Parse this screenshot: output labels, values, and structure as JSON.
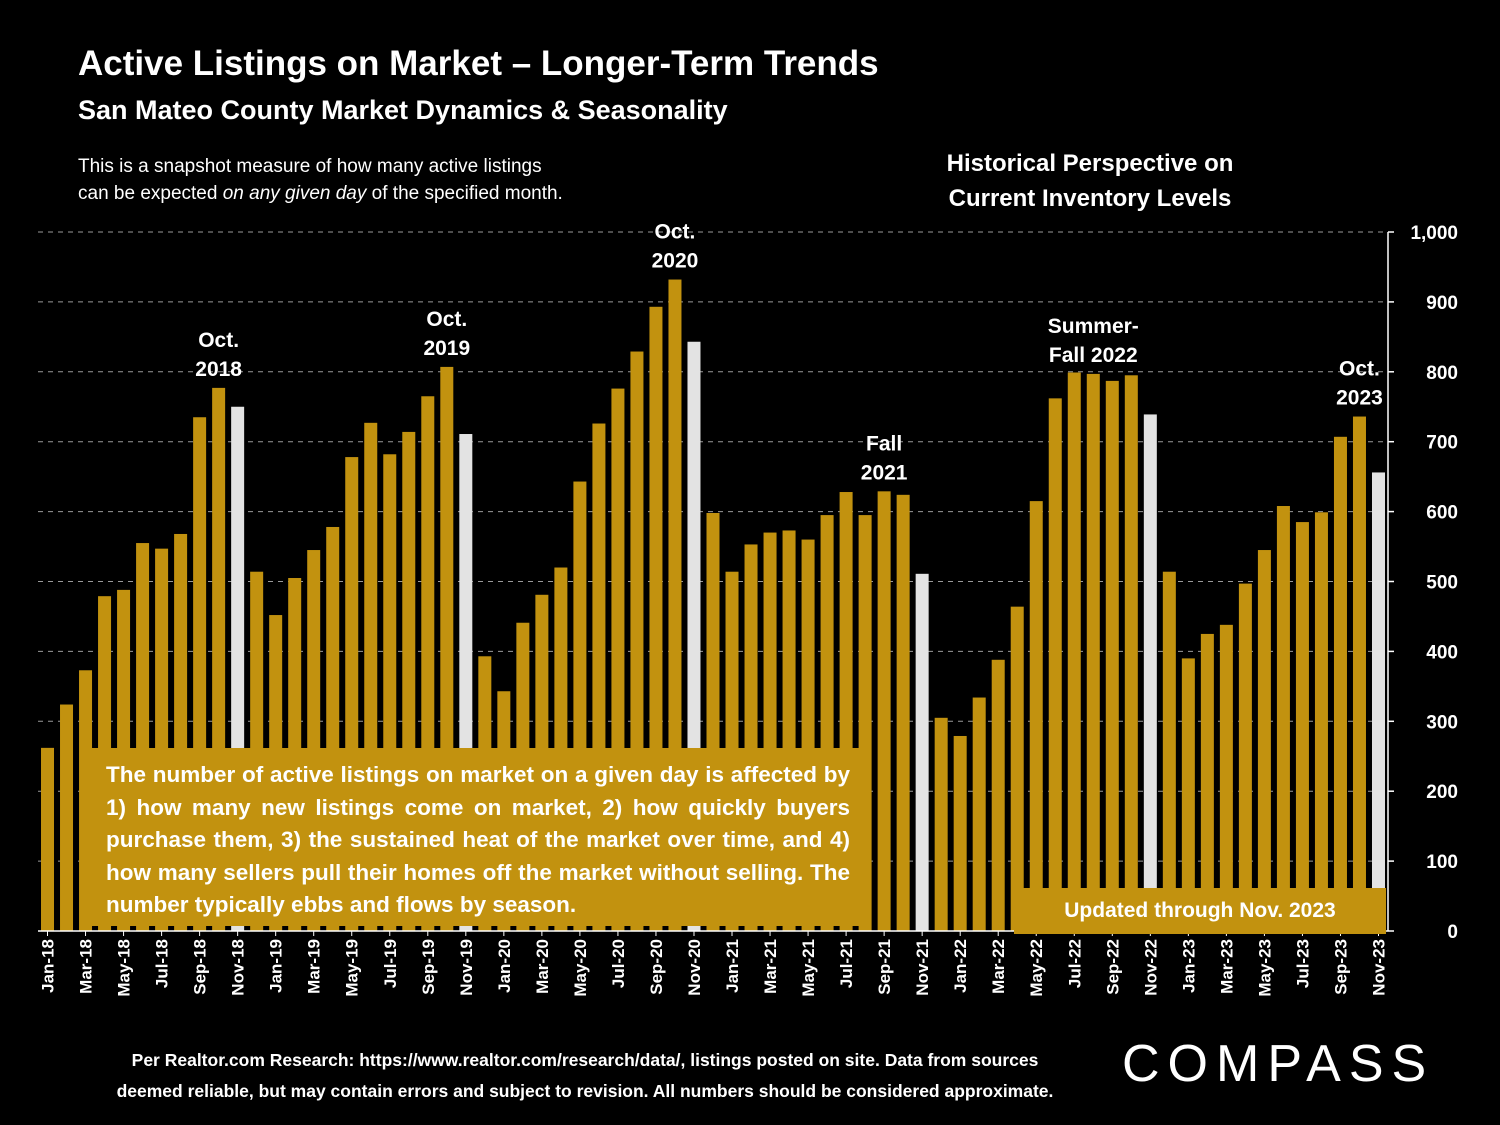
{
  "header": {
    "title": "Active Listings on Market – Longer-Term Trends",
    "subtitle": "San Mateo County Market Dynamics & Seasonality",
    "desc_pre": "This is a snapshot measure of how many active listings",
    "desc_line2_a": "can be expected ",
    "desc_line2_em": "on any given day",
    "desc_line2_b": " of the specified month.",
    "hist_line1": "Historical Perspective on",
    "hist_line2": "Current Inventory Levels"
  },
  "callout": "The number of active listings on market on a given day is affected by 1) how many new listings come on market, 2) how quickly buyers purchase them, 3) the sustained heat of the market over time, and 4) how many sellers pull their homes off the market without selling. The number typically ebbs and flows by season.",
  "updated": "Updated through Nov. 2023",
  "footer": {
    "line1": "Per Realtor.com Research:  https://www.realtor.com/research/data/, listings posted on site. Data from sources",
    "line2": "deemed reliable, but may contain errors and subject to revision. All numbers should be considered approximate."
  },
  "logo": "COMPASS",
  "colors": {
    "bar": "#c2920f",
    "highlight": "#e3e3e3",
    "background": "#000000"
  },
  "chart_data": {
    "type": "bar",
    "ylim": [
      0,
      1000
    ],
    "yticks": [
      0,
      100,
      200,
      300,
      400,
      500,
      600,
      700,
      800,
      900,
      1000
    ],
    "ytick_labels": [
      "0",
      "100",
      "200",
      "300",
      "400",
      "500",
      "600",
      "700",
      "800",
      "900",
      "1,000"
    ],
    "grid": true,
    "categories": [
      "Jan-18",
      "Feb-18",
      "Mar-18",
      "Apr-18",
      "May-18",
      "Jun-18",
      "Jul-18",
      "Aug-18",
      "Sep-18",
      "Oct-18",
      "Nov-18",
      "Dec-18",
      "Jan-19",
      "Feb-19",
      "Mar-19",
      "Apr-19",
      "May-19",
      "Jun-19",
      "Jul-19",
      "Aug-19",
      "Sep-19",
      "Oct-19",
      "Nov-19",
      "Dec-19",
      "Jan-20",
      "Feb-20",
      "Mar-20",
      "Apr-20",
      "May-20",
      "Jun-20",
      "Jul-20",
      "Aug-20",
      "Sep-20",
      "Oct-20",
      "Nov-20",
      "Dec-20",
      "Jan-21",
      "Feb-21",
      "Mar-21",
      "Apr-21",
      "May-21",
      "Jun-21",
      "Jul-21",
      "Aug-21",
      "Sep-21",
      "Oct-21",
      "Nov-21",
      "Dec-21",
      "Jan-22",
      "Feb-22",
      "Mar-22",
      "Apr-22",
      "May-22",
      "Jun-22",
      "Jul-22",
      "Aug-22",
      "Sep-22",
      "Oct-22",
      "Nov-22",
      "Dec-22",
      "Jan-23",
      "Feb-23",
      "Mar-23",
      "Apr-23",
      "May-23",
      "Jun-23",
      "Jul-23",
      "Aug-23",
      "Sep-23",
      "Oct-23",
      "Nov-23"
    ],
    "values": [
      262,
      324,
      373,
      479,
      488,
      555,
      547,
      568,
      735,
      777,
      750,
      514,
      452,
      505,
      545,
      578,
      678,
      727,
      682,
      714,
      765,
      807,
      711,
      393,
      343,
      441,
      481,
      520,
      643,
      726,
      776,
      829,
      893,
      932,
      843,
      598,
      514,
      553,
      570,
      573,
      560,
      595,
      628,
      595,
      629,
      624,
      511,
      305,
      279,
      334,
      388,
      464,
      615,
      762,
      799,
      797,
      787,
      795,
      739,
      514,
      390,
      425,
      438,
      497,
      545,
      608,
      585,
      599,
      707,
      736,
      656
    ],
    "highlighted": [
      "Nov-18",
      "Nov-19",
      "Nov-20",
      "Nov-21",
      "Nov-22",
      "Nov-23"
    ],
    "tick_labels": [
      "Jan-18",
      "Mar-18",
      "May-18",
      "Jul-18",
      "Sep-18",
      "Nov-18",
      "Jan-19",
      "Mar-19",
      "May-19",
      "Jul-19",
      "Sep-19",
      "Nov-19",
      "Jan-20",
      "Mar-20",
      "May-20",
      "Jul-20",
      "Sep-20",
      "Nov-20",
      "Jan-21",
      "Mar-21",
      "May-21",
      "Jul-21",
      "Sep-21",
      "Nov-21",
      "Jan-22",
      "Mar-22",
      "May-22",
      "Jul-22",
      "Sep-22",
      "Nov-22",
      "Jan-23",
      "Mar-23",
      "May-23",
      "Jul-23",
      "Sep-23",
      "Nov-23"
    ],
    "annotations": [
      {
        "anchor": "Oct-18",
        "lines": [
          "Oct.",
          "2018"
        ]
      },
      {
        "anchor": "Oct-19",
        "lines": [
          "Oct.",
          "2019"
        ]
      },
      {
        "anchor": "Oct-20",
        "lines": [
          "Oct.",
          "2020"
        ]
      },
      {
        "anchor": "Sep-21",
        "lines": [
          "Fall",
          "2021"
        ]
      },
      {
        "anchor": "Aug-22",
        "lines": [
          "Summer-",
          "Fall 2022"
        ]
      },
      {
        "anchor": "Oct-23",
        "lines": [
          "Oct.",
          "2023"
        ]
      }
    ]
  }
}
